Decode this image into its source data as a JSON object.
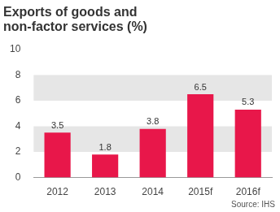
{
  "chart_data": {
    "type": "bar",
    "title": [
      "Exports of goods and",
      "non-factor services (%)"
    ],
    "annotation": "Source: IHS",
    "categories": [
      "2012",
      "2013",
      "2014",
      "2015f",
      "2016f"
    ],
    "values": [
      3.5,
      1.8,
      3.8,
      6.5,
      5.3
    ],
    "color": "#e8174a",
    "ylim": [
      0,
      10
    ],
    "yticks": [
      0,
      2,
      4,
      6,
      8,
      10
    ],
    "grid": true,
    "data_labels": true
  }
}
